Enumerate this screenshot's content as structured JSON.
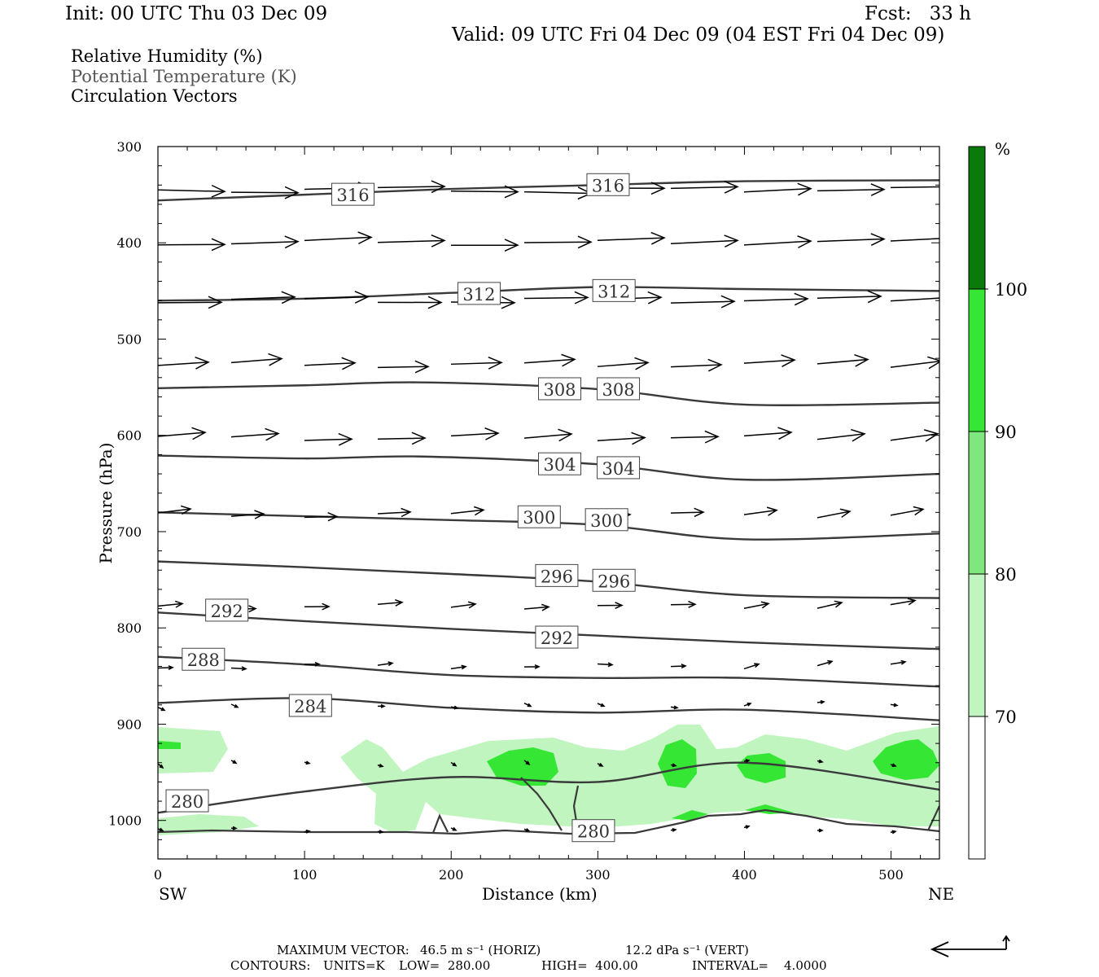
{
  "header": {
    "init": "Init: 00 UTC Thu 03 Dec 09",
    "fcst": "Fcst:   33 h",
    "valid": "Valid: 09 UTC Fri 04 Dec 09 (04 EST Fri 04 Dec 09)"
  },
  "legend": {
    "rh": "Relative Humidity (%)",
    "theta": "Potential Temperature (K)",
    "vectors": "Circulation Vectors"
  },
  "footer": {
    "max_vector_label": "MAXIMUM VECTOR:",
    "max_horiz": "46.5 m s⁻¹ (HORIZ)",
    "max_vert": "12.2 dPa s⁻¹ (VERT)",
    "contours_label": "CONTOURS:",
    "units": "UNITS=K",
    "low": "LOW=  280.00",
    "high": "HIGH=  400.00",
    "interval": "INTERVAL=    4.0000"
  },
  "colors": {
    "rh_70": "#c0f5c0",
    "rh_80": "#7ee87e",
    "rh_90": "#35e635",
    "rh_100": "#0a7a0a",
    "contour": "#3a3a3a"
  },
  "chart_data": {
    "type": "cross-section",
    "xlabel": "Distance (km)",
    "ylabel": "Pressure (hPa)",
    "xlim": [
      0,
      533
    ],
    "ylim": [
      1040,
      300
    ],
    "x_ticks": [
      0,
      100,
      200,
      300,
      400,
      500
    ],
    "y_ticks": [
      300,
      400,
      500,
      600,
      700,
      800,
      900,
      1000
    ],
    "x_left_label": "SW",
    "x_right_label": "NE",
    "colorbar": {
      "unit": "%",
      "levels": [
        70,
        80,
        90,
        100
      ],
      "colors": [
        "#ffffff",
        "#c0f5c0",
        "#7ee87e",
        "#35e635",
        "#0a7a0a"
      ]
    },
    "theta_contours": [
      {
        "value": 316,
        "points": [
          [
            0,
            356
          ],
          [
            100,
            350
          ],
          [
            200,
            344
          ],
          [
            300,
            340
          ],
          [
            400,
            336
          ],
          [
            533,
            335
          ]
        ],
        "labels": [
          [
            133,
            350
          ],
          [
            307,
            340
          ]
        ]
      },
      {
        "value": 312,
        "points": [
          [
            0,
            460
          ],
          [
            100,
            458
          ],
          [
            200,
            452
          ],
          [
            300,
            446
          ],
          [
            400,
            448
          ],
          [
            533,
            450
          ]
        ],
        "labels": [
          [
            219,
            453
          ],
          [
            311,
            450
          ]
        ]
      },
      {
        "value": 308,
        "points": [
          [
            0,
            551
          ],
          [
            100,
            548
          ],
          [
            180,
            545
          ],
          [
            300,
            552
          ],
          [
            400,
            568
          ],
          [
            533,
            566
          ]
        ],
        "labels": [
          [
            274,
            552
          ],
          [
            314,
            552
          ]
        ]
      },
      {
        "value": 304,
        "points": [
          [
            0,
            621
          ],
          [
            100,
            624
          ],
          [
            180,
            622
          ],
          [
            300,
            630
          ],
          [
            400,
            646
          ],
          [
            533,
            640
          ]
        ],
        "labels": [
          [
            274,
            630
          ],
          [
            314,
            634
          ]
        ]
      },
      {
        "value": 300,
        "points": [
          [
            0,
            680
          ],
          [
            100,
            684
          ],
          [
            200,
            688
          ],
          [
            300,
            693
          ],
          [
            400,
            708
          ],
          [
            533,
            702
          ]
        ],
        "labels": [
          [
            260,
            685
          ],
          [
            306,
            688
          ]
        ]
      },
      {
        "value": 296,
        "points": [
          [
            0,
            731
          ],
          [
            100,
            737
          ],
          [
            200,
            744
          ],
          [
            300,
            752
          ],
          [
            400,
            766
          ],
          [
            533,
            769
          ]
        ],
        "labels": [
          [
            272,
            746
          ],
          [
            311,
            751
          ]
        ]
      },
      {
        "value": 292,
        "points": [
          [
            0,
            784
          ],
          [
            100,
            793
          ],
          [
            200,
            801
          ],
          [
            300,
            808
          ],
          [
            400,
            815
          ],
          [
            533,
            822
          ]
        ],
        "labels": [
          [
            47,
            782
          ],
          [
            272,
            810
          ]
        ]
      },
      {
        "value": 288,
        "points": [
          [
            0,
            830
          ],
          [
            100,
            838
          ],
          [
            200,
            849
          ],
          [
            300,
            852
          ],
          [
            400,
            852
          ],
          [
            533,
            861
          ]
        ],
        "labels": [
          [
            31,
            833
          ]
        ]
      },
      {
        "value": 284,
        "points": [
          [
            0,
            878
          ],
          [
            100,
            873
          ],
          [
            200,
            883
          ],
          [
            300,
            888
          ],
          [
            400,
            885
          ],
          [
            533,
            896
          ]
        ],
        "labels": [
          [
            104,
            881
          ]
        ]
      },
      {
        "value": 280,
        "points": [
          [
            0,
            992
          ],
          [
            100,
            970
          ],
          [
            200,
            955
          ],
          [
            300,
            960
          ],
          [
            400,
            940
          ],
          [
            533,
            968
          ]
        ],
        "labels": [
          [
            20,
            980
          ],
          [
            297,
            1011
          ]
        ]
      }
    ],
    "rh_levels_shown": [
      70,
      80,
      90
    ]
  }
}
